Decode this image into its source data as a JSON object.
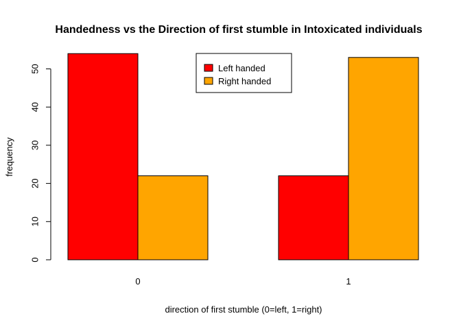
{
  "chart_data": {
    "type": "bar",
    "title": "Handedness vs the Direction of first stumble in Intoxicated individuals",
    "xlabel": "direction of first stumble (0=left, 1=right)",
    "ylabel": "frequency",
    "categories": [
      "0",
      "1"
    ],
    "series": [
      {
        "name": "Left handed",
        "color": "#ff0000",
        "values": [
          54,
          22
        ]
      },
      {
        "name": "Right handed",
        "color": "#ffa500",
        "values": [
          22,
          53
        ]
      }
    ],
    "y_ticks": [
      "0",
      "10",
      "20",
      "30",
      "40",
      "50"
    ],
    "ylim": [
      0,
      55
    ],
    "legend_position": "top-center",
    "grid": false
  }
}
